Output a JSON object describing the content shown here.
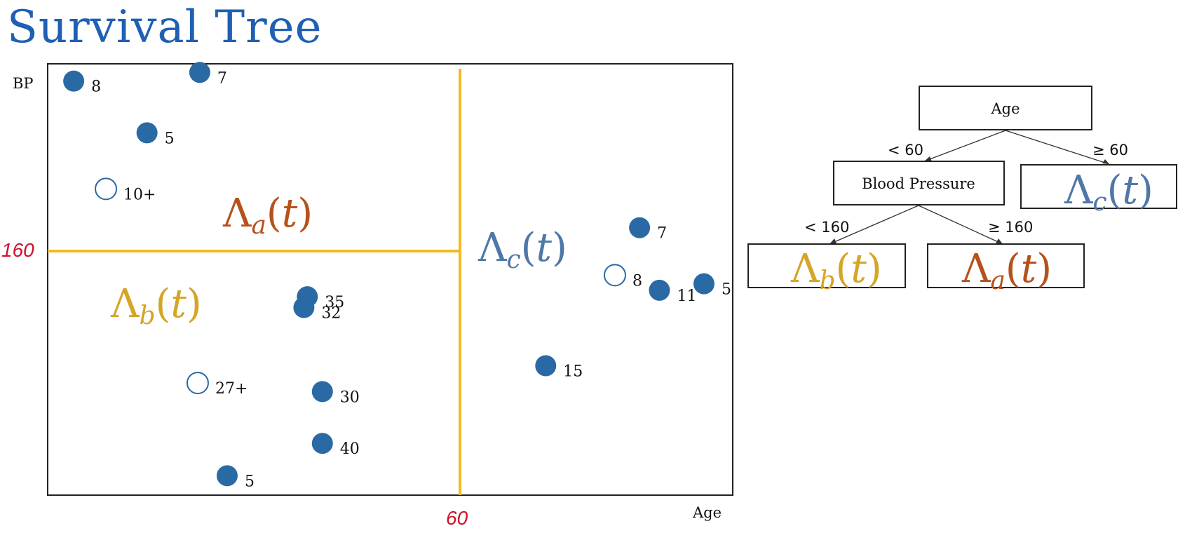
{
  "title": "Survival Tree",
  "colors": {
    "title": "#1f5fb4",
    "point": "#2a6aa4",
    "split": "#f2bb25",
    "lambda_a": "#b5521b",
    "lambda_b": "#d4a526",
    "lambda_c": "#4f78a8",
    "annotation": "#d0102a"
  },
  "chart_data": {
    "type": "scatter",
    "xlabel": "Age",
    "ylabel": "BP",
    "split_x_label": "60",
    "split_y_label": "160",
    "region_labels": {
      "a": "Λa(t)",
      "b": "Λb(t)",
      "c": "Λc(t)"
    },
    "points": [
      {
        "x": 3.8,
        "y": 96,
        "label": "8",
        "event": true
      },
      {
        "x": 22.2,
        "y": 98,
        "label": "7",
        "event": true
      },
      {
        "x": 14.5,
        "y": 84,
        "label": "5",
        "event": true
      },
      {
        "x": 8.5,
        "y": 71,
        "label": "10+",
        "event": false
      },
      {
        "x": 37.9,
        "y": 46,
        "label": "35",
        "event": true
      },
      {
        "x": 37.4,
        "y": 43.5,
        "label": "32",
        "event": true
      },
      {
        "x": 21.9,
        "y": 26,
        "label": "27+",
        "event": false
      },
      {
        "x": 40.1,
        "y": 24,
        "label": "30",
        "event": true
      },
      {
        "x": 40.1,
        "y": 12,
        "label": "40",
        "event": true
      },
      {
        "x": 26.2,
        "y": 4.5,
        "label": "5",
        "event": true
      },
      {
        "x": 86.4,
        "y": 62,
        "label": "7",
        "event": true
      },
      {
        "x": 82.8,
        "y": 51,
        "label": "8",
        "event": false
      },
      {
        "x": 89.3,
        "y": 47.5,
        "label": "11",
        "event": true
      },
      {
        "x": 95.8,
        "y": 49,
        "label": "5",
        "event": true
      },
      {
        "x": 72.7,
        "y": 30,
        "label": "15",
        "event": true
      }
    ]
  },
  "tree": {
    "root": "Age",
    "left_edge": "< 60",
    "right_edge": "≥ 60",
    "bp_node": "Blood Pressure",
    "bp_left_edge": "< 160",
    "bp_right_edge": "≥ 160",
    "leaf_c": "Λc(t)",
    "leaf_b": "Λb(t)",
    "leaf_a": "Λa(t)"
  }
}
